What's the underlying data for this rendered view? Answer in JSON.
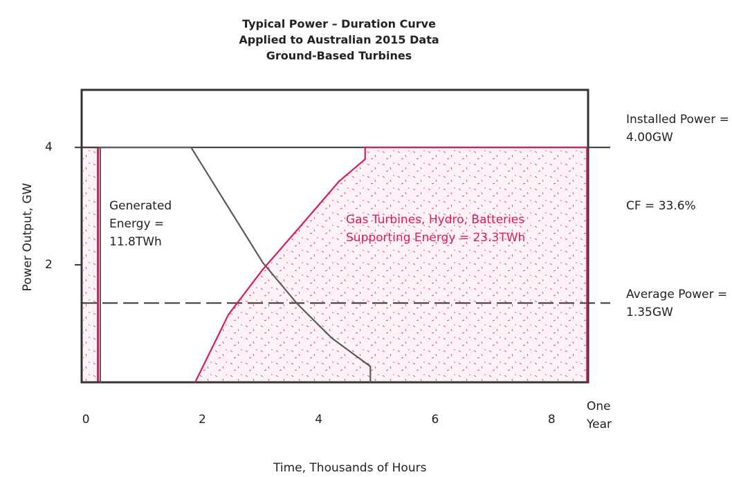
{
  "chart_data": {
    "type": "line",
    "title_lines": [
      "Typical Power – Duration Curve",
      "Applied to Australian 2015 Data",
      "Ground-Based Turbines"
    ],
    "x_label": "Time, Thousands of Hours",
    "y_label": "Power Output, GW",
    "xlim": [
      -0.08,
      8.62
    ],
    "ylim": [
      0,
      4.98
    ],
    "xticks": [
      0,
      2,
      4,
      6,
      8,
      {
        "value": 8.62,
        "label": "One Year"
      }
    ],
    "yticks": [
      2,
      4
    ],
    "series": [
      {
        "name": "Generated Energy",
        "color": "#555a66",
        "x": [
          0.24,
          0.24,
          1.8,
          2.44,
          3.03,
          3.63,
          4.22,
          4.88,
          4.88
        ],
        "values": [
          0,
          4,
          4,
          2.98,
          2.04,
          1.33,
          0.75,
          0.27,
          0
        ]
      },
      {
        "name": "Supporting Energy",
        "color": "#d81b5a",
        "x": [
          1.87,
          2.44,
          3.03,
          3.75,
          4.34,
          4.79,
          4.79,
          8.6,
          8.6
        ],
        "values": [
          0,
          1.15,
          1.92,
          2.74,
          3.42,
          3.8,
          4,
          4,
          0
        ]
      }
    ],
    "reference_lines": [
      {
        "value": 4,
        "style": "solid"
      },
      {
        "value": 1.35,
        "style": "dashed"
      }
    ],
    "annotations": [
      {
        "text": "Installed Power = 4.00GW",
        "color": "#222"
      },
      {
        "text": "CF = 33.6%",
        "color": "#222"
      },
      {
        "text": "Average Power = 1.35GW",
        "color": "#222"
      },
      {
        "text": "Generated Energy = 11.8TWh",
        "color": "#222"
      },
      {
        "text": "Gas Turbines, Hydro, Batteries Supporting Energy = 23.3TWh",
        "color": "#d81b5a"
      }
    ]
  }
}
